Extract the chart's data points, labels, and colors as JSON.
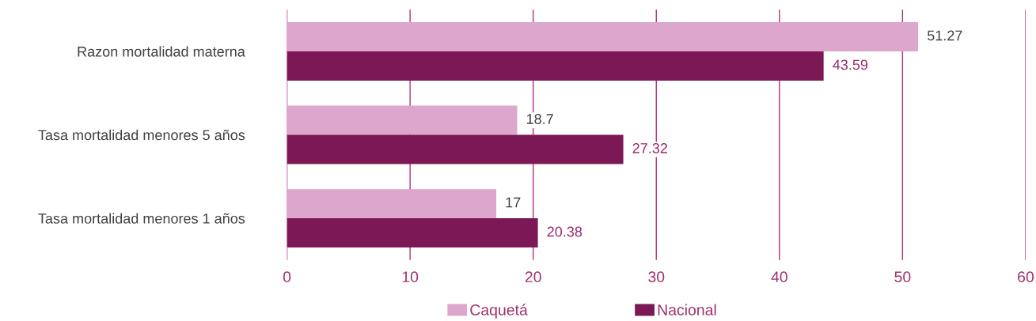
{
  "chart_data": {
    "type": "bar",
    "orientation": "horizontal",
    "categories": [
      "Razon mortalidad materna",
      "Tasa mortalidad menores 5 años",
      "Tasa mortalidad menores 1 años"
    ],
    "series": [
      {
        "name": "Caquetá",
        "color": "#dda6cc",
        "values": [
          51.27,
          18.7,
          17
        ]
      },
      {
        "name": "Nacional",
        "color": "#7b1855",
        "values": [
          43.59,
          27.32,
          20.38
        ]
      }
    ],
    "xlim": [
      0,
      60
    ],
    "xticks": [
      0,
      10,
      20,
      30,
      40,
      50,
      60
    ],
    "grid": "x",
    "legend": "bottom",
    "data_labels": true
  }
}
